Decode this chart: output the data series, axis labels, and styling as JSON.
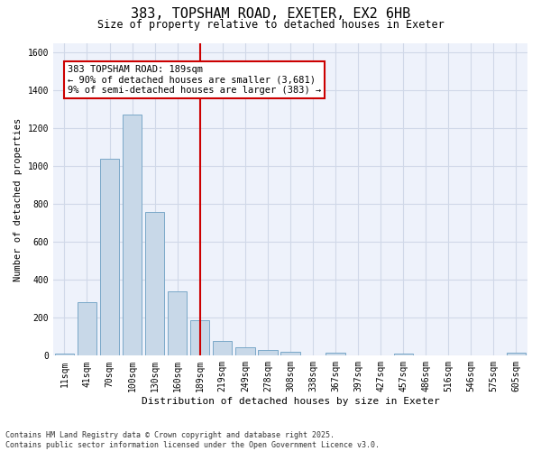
{
  "title1": "383, TOPSHAM ROAD, EXETER, EX2 6HB",
  "title2": "Size of property relative to detached houses in Exeter",
  "xlabel": "Distribution of detached houses by size in Exeter",
  "ylabel": "Number of detached properties",
  "bins": [
    "11sqm",
    "41sqm",
    "70sqm",
    "100sqm",
    "130sqm",
    "160sqm",
    "189sqm",
    "219sqm",
    "249sqm",
    "278sqm",
    "308sqm",
    "338sqm",
    "367sqm",
    "397sqm",
    "427sqm",
    "457sqm",
    "486sqm",
    "516sqm",
    "546sqm",
    "575sqm",
    "605sqm"
  ],
  "values": [
    10,
    280,
    1040,
    1270,
    760,
    340,
    185,
    80,
    45,
    30,
    22,
    0,
    15,
    0,
    0,
    12,
    0,
    0,
    0,
    0,
    15
  ],
  "bar_color": "#c8d8e8",
  "bar_edge_color": "#7aa8c8",
  "marker_bin_index": 6,
  "vline_color": "#cc0000",
  "annotation_text": "383 TOPSHAM ROAD: 189sqm\n← 90% of detached houses are smaller (3,681)\n9% of semi-detached houses are larger (383) →",
  "annotation_box_color": "#ffffff",
  "annotation_box_edge": "#cc0000",
  "annotation_fontsize": 7.5,
  "grid_color": "#d0d8e8",
  "background_color": "#eef2fb",
  "footer1": "Contains HM Land Registry data © Crown copyright and database right 2025.",
  "footer2": "Contains public sector information licensed under the Open Government Licence v3.0.",
  "ylim": [
    0,
    1650
  ],
  "yticks": [
    0,
    200,
    400,
    600,
    800,
    1000,
    1200,
    1400,
    1600
  ],
  "title1_fontsize": 11,
  "title2_fontsize": 8.5,
  "xlabel_fontsize": 8,
  "ylabel_fontsize": 7.5,
  "tick_fontsize": 7,
  "footer_fontsize": 6
}
